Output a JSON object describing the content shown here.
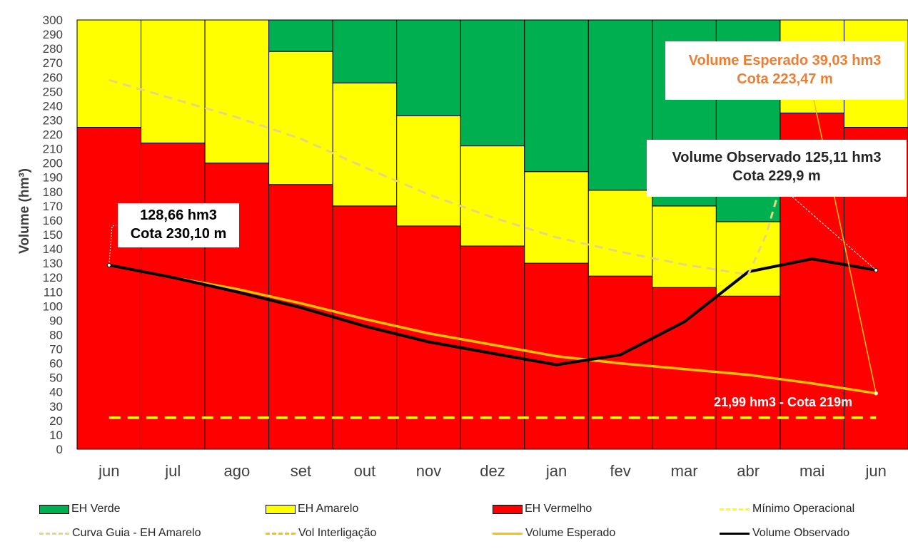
{
  "chart_data": {
    "type": "bar",
    "stacked": true,
    "categories": [
      "jun",
      "jul",
      "ago",
      "set",
      "out",
      "nov",
      "dez",
      "jan",
      "fev",
      "mar",
      "abr",
      "mai",
      "jun"
    ],
    "ylabel": "Volume (hm³)",
    "ylim": [
      0,
      300
    ],
    "ytick_step": 10,
    "grid": false,
    "legend_placement": "bottom",
    "colors": {
      "verde": "#00B050",
      "amarelo": "#FFFF00",
      "vermelho": "#FF0000",
      "curva_guia": "#E8D77A",
      "vol_interligacao": "#FFD700",
      "volume_esperado": "#FFC000",
      "volume_observado": "#000000",
      "annotation_orange": "#ED7D31"
    },
    "series": [
      {
        "name": "EH Vermelho",
        "kind": "bar",
        "values": [
          225,
          214,
          200,
          185,
          170,
          156,
          142,
          130,
          121,
          113,
          107,
          235,
          225
        ]
      },
      {
        "name": "EH Amarelo",
        "kind": "bar",
        "values": [
          75,
          86,
          100,
          93,
          86,
          77,
          70,
          64,
          60,
          57,
          52,
          65,
          75
        ]
      },
      {
        "name": "EH Verde",
        "kind": "bar",
        "values": [
          0,
          0,
          0,
          22,
          44,
          67,
          88,
          106,
          119,
          130,
          141,
          0,
          0
        ]
      },
      {
        "name": "Curva Guia - EH Amarelo",
        "kind": "line",
        "style": "dashed",
        "values": [
          258,
          245,
          232,
          217,
          197,
          178,
          162,
          148,
          138,
          129,
          122,
          null,
          null
        ]
      },
      {
        "name": "Mínimo Operacional",
        "kind": "line",
        "style": "dashed",
        "values": [
          21.99,
          21.99,
          21.99,
          21.99,
          21.99,
          21.99,
          21.99,
          21.99,
          21.99,
          21.99,
          21.99,
          21.99,
          21.99
        ]
      },
      {
        "name": "Vol Interligação",
        "kind": "line",
        "style": "dashed",
        "values": [
          null,
          null,
          null,
          null,
          null,
          null,
          null,
          null,
          null,
          null,
          null,
          null,
          null
        ]
      },
      {
        "name": "Volume Esperado",
        "kind": "line",
        "style": "solid",
        "values": [
          128.66,
          120,
          112,
          102,
          91,
          81,
          73,
          65,
          60,
          56,
          52,
          46,
          39.03
        ]
      },
      {
        "name": "Volume Observado",
        "kind": "line",
        "style": "solid",
        "values": [
          128.66,
          120,
          110,
          99,
          86,
          75,
          67,
          59,
          66,
          89,
          124,
          133,
          125.11
        ]
      }
    ],
    "annotations": [
      {
        "id": "start",
        "lines": [
          "128,66 hm3",
          "Cota 230,10 m"
        ]
      },
      {
        "id": "esperado",
        "lines": [
          "Volume Esperado 39,03 hm3",
          "Cota 223,47 m"
        ]
      },
      {
        "id": "observado",
        "lines": [
          "Volume Observado  125,11  hm3",
          "Cota 229,9 m"
        ]
      },
      {
        "id": "minimo",
        "lines": [
          "21,99 hm3 - Cota 219m"
        ]
      }
    ]
  },
  "legend": {
    "row1": [
      "EH Verde",
      "EH Amarelo",
      "EH Vermelho",
      "Mínimo Operacional"
    ],
    "row2": [
      "Curva Guia - EH Amarelo",
      "Vol Interligação",
      "Volume Esperado",
      "Volume Observado"
    ]
  }
}
